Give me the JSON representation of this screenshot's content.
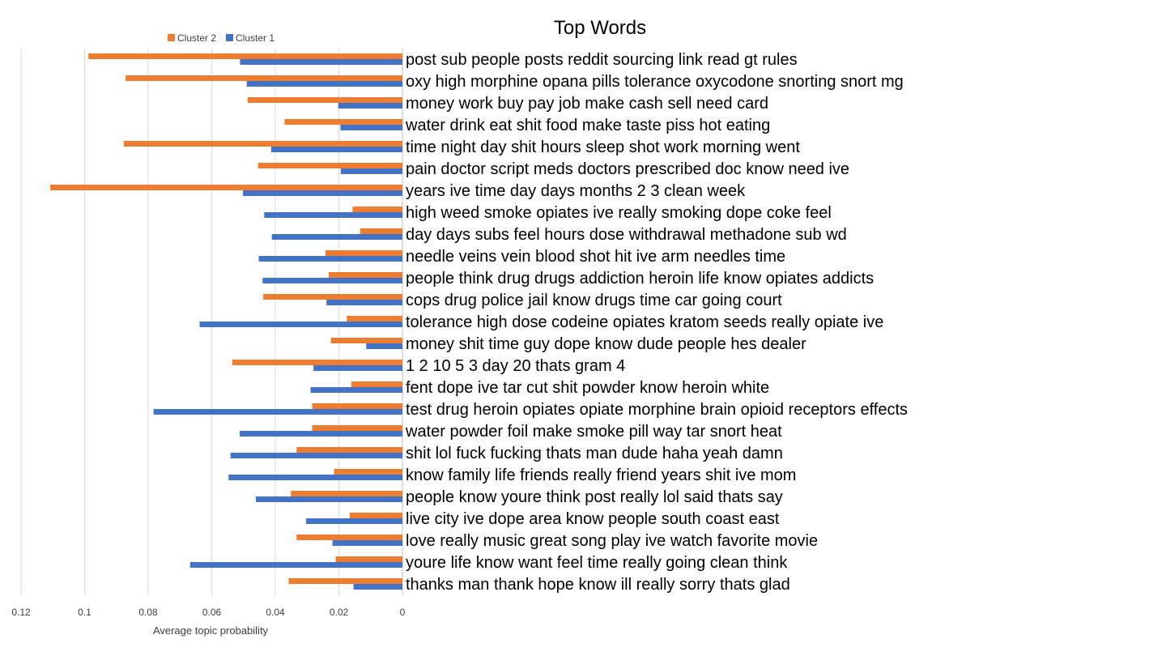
{
  "chart_data": {
    "type": "bar",
    "orientation": "horizontal",
    "title": "Top Words",
    "xlabel": "Average topic probability",
    "ylabel": "",
    "xlim": [
      0,
      0.12
    ],
    "x_reversed": true,
    "xticks": [
      "0.12",
      "0.1",
      "0.08",
      "0.06",
      "0.04",
      "0.02",
      "0"
    ],
    "grid": true,
    "legend_position": "top-left",
    "categories": [
      "post sub people posts reddit sourcing link read gt rules",
      "oxy high morphine opana pills tolerance oxycodone snorting snort mg",
      "money work buy pay job make cash sell need card",
      "water drink eat shit food make taste piss hot eating",
      "time night day shit hours sleep shot work morning went",
      "pain doctor script meds doctors prescribed doc know need ive",
      "years ive time day days months 2 3 clean week",
      "high weed smoke opiates ive really smoking dope coke feel",
      "day days subs feel hours dose withdrawal methadone sub wd",
      "needle veins vein blood shot hit ive arm needles time",
      "people think drug drugs addiction heroin life know opiates addicts",
      "cops drug police jail know drugs time car going court",
      "tolerance high dose codeine opiates kratom seeds really opiate ive",
      "money shit time guy dope know dude people hes dealer",
      "1 2 10 5 3 day 20 thats gram 4",
      "fent dope ive tar cut shit powder know heroin white",
      "test drug heroin opiates opiate morphine brain opioid receptors effects",
      "water powder foil make smoke pill way tar snort heat",
      "shit lol fuck fucking thats man dude haha yeah damn",
      "know family life friends really friend years shit ive mom",
      "people know youre think post really lol said thats say",
      "live city ive dope area know people south coast east",
      "love really music great song play ive watch favorite movie",
      "youre life know want feel time really going clean think",
      "thanks man thank hope know ill really sorry thats glad"
    ],
    "series": [
      {
        "name": "Cluster 2",
        "color": "#ED7D31",
        "values": [
          0.0988,
          0.0871,
          0.0487,
          0.0371,
          0.0877,
          0.0454,
          0.1108,
          0.0157,
          0.0133,
          0.0242,
          0.0232,
          0.0438,
          0.0175,
          0.0225,
          0.0535,
          0.0161,
          0.0284,
          0.0284,
          0.0333,
          0.0215,
          0.0351,
          0.0166,
          0.0333,
          0.021,
          0.0358
        ]
      },
      {
        "name": "Cluster 1",
        "color": "#4472C4",
        "values": [
          0.0511,
          0.049,
          0.0202,
          0.0195,
          0.0413,
          0.0194,
          0.0502,
          0.0435,
          0.0411,
          0.0452,
          0.044,
          0.0239,
          0.0638,
          0.0114,
          0.028,
          0.0289,
          0.0783,
          0.0512,
          0.0541,
          0.0547,
          0.0461,
          0.0303,
          0.022,
          0.0668,
          0.0154
        ]
      }
    ]
  }
}
